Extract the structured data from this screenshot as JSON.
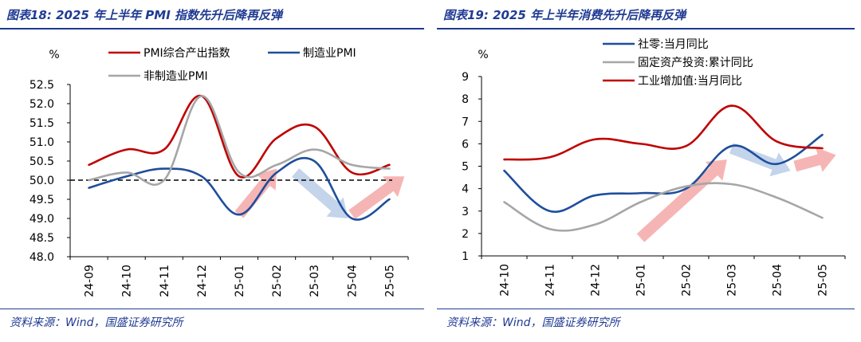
{
  "charts": [
    {
      "title": "图表18:  2025 年上半年 PMI 指数先升后降再反弹",
      "source": "资料来源：Wind，国盛证券研究所",
      "chart_data": {
        "type": "line",
        "unit_label": "%",
        "categories": [
          "24-09",
          "24-10",
          "24-11",
          "24-12",
          "25-01",
          "25-02",
          "25-03",
          "25-04",
          "25-05"
        ],
        "ylim": [
          48.0,
          52.5
        ],
        "yticks": [
          "48.0",
          "48.5",
          "49.0",
          "49.5",
          "50.0",
          "50.5",
          "51.0",
          "51.5",
          "52.0",
          "52.5"
        ],
        "reference_line": 50.0,
        "legend_position": "top",
        "series": [
          {
            "name": "PMI综合产出指数",
            "color": "#c00000",
            "values": [
              50.4,
              50.8,
              50.8,
              52.2,
              50.1,
              51.1,
              51.4,
              50.2,
              50.4
            ]
          },
          {
            "name": "制造业PMI",
            "color": "#1f4e9c",
            "values": [
              49.8,
              50.1,
              50.3,
              50.1,
              49.1,
              50.2,
              50.5,
              49.0,
              49.5
            ]
          },
          {
            "name": "非制造业PMI",
            "color": "#a6a6a6",
            "values": [
              50.0,
              50.2,
              50.0,
              52.2,
              50.2,
              50.4,
              50.8,
              50.4,
              50.3
            ]
          }
        ],
        "annotations": [
          {
            "kind": "arrow",
            "color": "#f4a8a8",
            "from": [
              4,
              49.1
            ],
            "to": [
              5,
              50.3
            ]
          },
          {
            "kind": "arrow",
            "color": "#b8cde8",
            "from": [
              5.5,
              50.2
            ],
            "to": [
              6.9,
              49.0
            ]
          },
          {
            "kind": "arrow",
            "color": "#f4a8a8",
            "from": [
              7.0,
              49.1
            ],
            "to": [
              8.4,
              50.1
            ]
          }
        ]
      }
    },
    {
      "title": "图表19:  2025 年上半年消费先升后降再反弹",
      "source": "资料来源：Wind，国盛证券研究所",
      "chart_data": {
        "type": "line",
        "unit_label": "%",
        "categories": [
          "24-10",
          "24-11",
          "24-12",
          "25-01",
          "25-02",
          "25-03",
          "25-04",
          "25-05"
        ],
        "ylim": [
          1,
          9
        ],
        "yticks": [
          "1",
          "2",
          "3",
          "4",
          "5",
          "6",
          "7",
          "8",
          "9"
        ],
        "legend_position": "top-left",
        "series": [
          {
            "name": "社零:当月同比",
            "color": "#1f4e9c",
            "values": [
              4.8,
              3.0,
              3.7,
              3.8,
              4.0,
              5.9,
              5.1,
              6.4
            ]
          },
          {
            "name": "固定资产投资:累计同比",
            "color": "#a6a6a6",
            "values": [
              3.4,
              2.2,
              2.4,
              3.4,
              4.1,
              4.2,
              3.6,
              2.7
            ]
          },
          {
            "name": "工业增加值:当月同比",
            "color": "#c00000",
            "values": [
              5.3,
              5.4,
              6.2,
              6.0,
              5.9,
              7.7,
              6.1,
              5.8
            ]
          }
        ],
        "annotations": [
          {
            "kind": "arrow",
            "color": "#f4a8a8",
            "from": [
              3,
              1.8
            ],
            "to": [
              4.9,
              5.3
            ]
          },
          {
            "kind": "arrow",
            "color": "#b8cde8",
            "from": [
              5,
              5.8
            ],
            "to": [
              6.3,
              4.8
            ]
          },
          {
            "kind": "arrow",
            "color": "#f4a8a8",
            "from": [
              6.4,
              5.0
            ],
            "to": [
              7.3,
              5.5
            ]
          }
        ]
      }
    }
  ]
}
